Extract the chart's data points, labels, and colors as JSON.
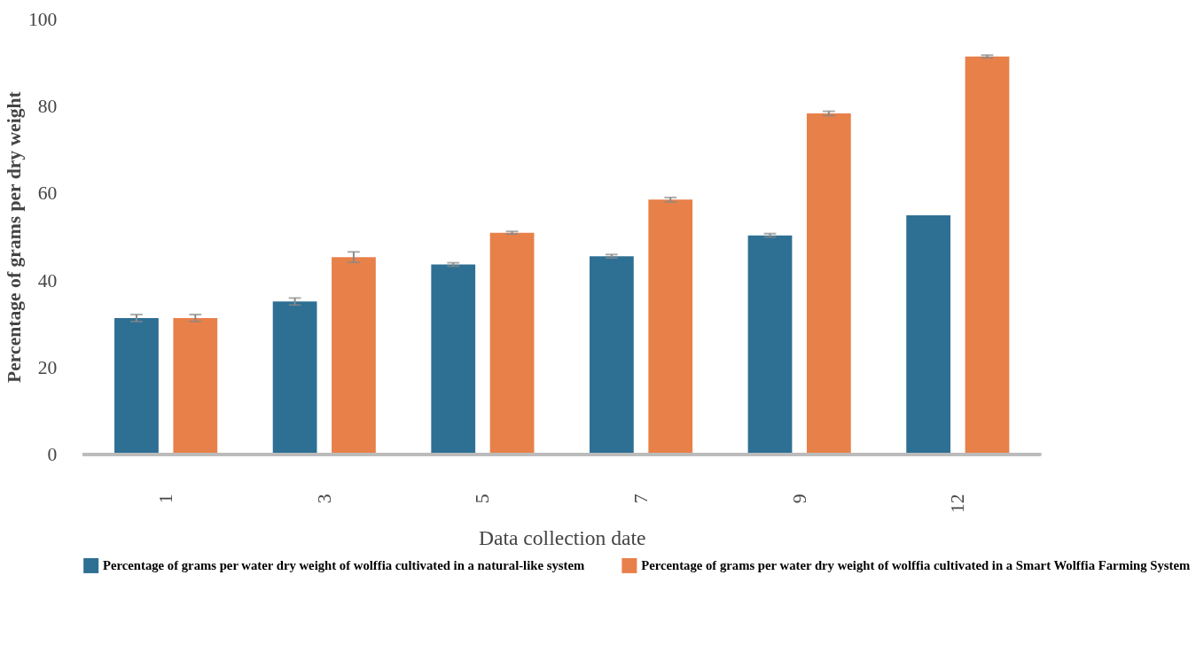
{
  "chart_data": {
    "type": "bar",
    "xlabel": "Data collection date",
    "ylabel": "Percentage of grams per dry weight",
    "categories": [
      "1",
      "3",
      "5",
      "7",
      "9",
      "12"
    ],
    "series": [
      {
        "name": "Percentage of grams per water dry weight of wolffia cultivated in a natural-like system",
        "color": "#2e6f94",
        "values": [
          31.3,
          35.1,
          43.6,
          45.5,
          50.3,
          54.9
        ],
        "errors": [
          0.8,
          0.8,
          0.4,
          0.4,
          0.4,
          null
        ]
      },
      {
        "name": "Percentage of grams per water dry weight of wolffia cultivated in a Smart Wolffia Farming System",
        "color": "#e8804a",
        "values": [
          31.3,
          45.3,
          50.9,
          58.5,
          78.3,
          91.4
        ],
        "errors": [
          0.8,
          1.2,
          0.3,
          0.5,
          0.5,
          0.3
        ]
      }
    ],
    "ylim": [
      0,
      100
    ],
    "yticks": [
      0,
      20,
      40,
      60,
      80,
      100
    ],
    "grid": false,
    "legend": "bottom"
  }
}
